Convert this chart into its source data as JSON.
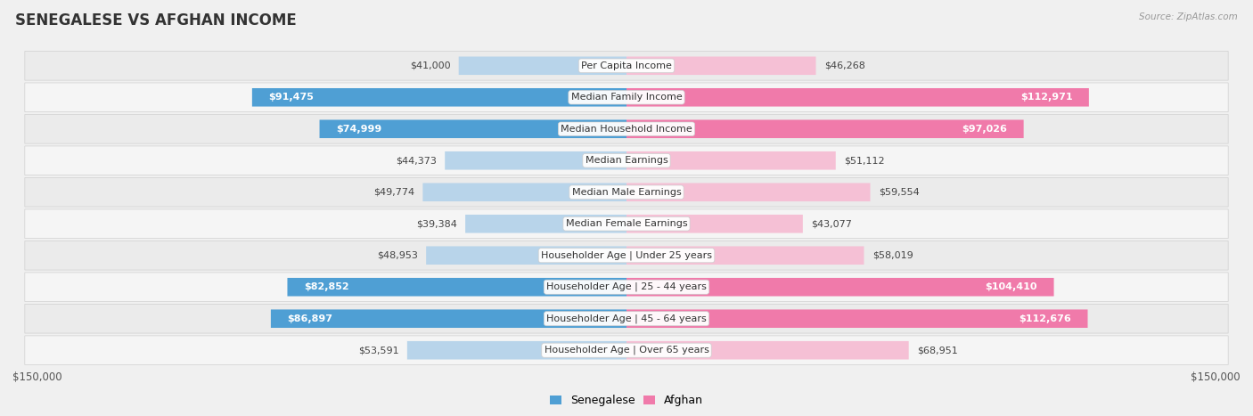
{
  "title": "SENEGALESE VS AFGHAN INCOME",
  "source": "Source: ZipAtlas.com",
  "categories": [
    "Per Capita Income",
    "Median Family Income",
    "Median Household Income",
    "Median Earnings",
    "Median Male Earnings",
    "Median Female Earnings",
    "Householder Age | Under 25 years",
    "Householder Age | 25 - 44 years",
    "Householder Age | 45 - 64 years",
    "Householder Age | Over 65 years"
  ],
  "senegalese_values": [
    41000,
    91475,
    74999,
    44373,
    49774,
    39384,
    48953,
    82852,
    86897,
    53591
  ],
  "afghan_values": [
    46268,
    112971,
    97026,
    51112,
    59554,
    43077,
    58019,
    104410,
    112676,
    68951
  ],
  "senegalese_labels": [
    "$41,000",
    "$91,475",
    "$74,999",
    "$44,373",
    "$49,774",
    "$39,384",
    "$48,953",
    "$82,852",
    "$86,897",
    "$53,591"
  ],
  "afghan_labels": [
    "$46,268",
    "$112,971",
    "$97,026",
    "$51,112",
    "$59,554",
    "$43,077",
    "$58,019",
    "$104,410",
    "$112,676",
    "$68,951"
  ],
  "max_value": 150000,
  "axis_label_left": "$150,000",
  "axis_label_right": "$150,000",
  "senegalese_color_strong": "#4f9fd4",
  "senegalese_color_light": "#b8d4ea",
  "afghan_color_strong": "#f07aaa",
  "afghan_color_light": "#f5c0d5",
  "row_bg_even": "#ebebeb",
  "row_bg_odd": "#f5f5f5",
  "fig_bg": "#f0f0f0",
  "legend_senegalese": "Senegalese",
  "legend_afghan": "Afghan",
  "title_fontsize": 12,
  "label_fontsize": 8,
  "category_fontsize": 8,
  "sen_strong_indices": [
    1,
    2,
    7,
    8
  ],
  "afg_strong_indices": [
    1,
    2,
    7,
    8
  ]
}
